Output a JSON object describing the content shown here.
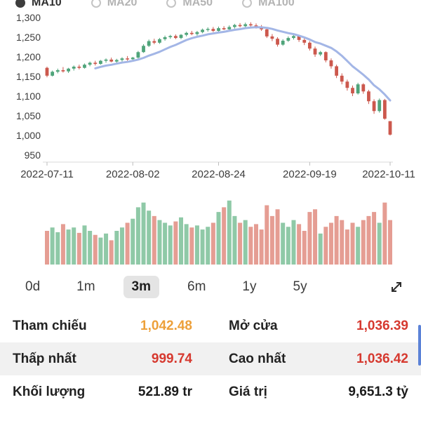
{
  "ma_options": [
    {
      "label": "MA10",
      "selected": true
    },
    {
      "label": "MA20",
      "selected": false
    },
    {
      "label": "MA50",
      "selected": false
    },
    {
      "label": "MA100",
      "selected": false
    }
  ],
  "range": {
    "options": [
      "0d",
      "1m",
      "3m",
      "6m",
      "1y",
      "5y"
    ],
    "selected": "3m"
  },
  "colors": {
    "candle_up": "#4fa47a",
    "candle_down": "#cc584d",
    "volume_up": "#8fc9a7",
    "volume_down": "#e59d93",
    "ma_line": "#a3b6e6",
    "axis_text": "#3c3c3c",
    "axis_line": "#d9d9d9",
    "value_red": "#d6392f",
    "value_amber": "#eda03a",
    "value_dark": "#1c1c1c"
  },
  "chart_data": [
    {
      "type": "candlestick",
      "name": "price",
      "title": "",
      "ylim": [
        950,
        1300
      ],
      "grid": false,
      "y_ticks": [
        {
          "label": "1,300",
          "value": 1300
        },
        {
          "label": "1,250",
          "value": 1250
        },
        {
          "label": "1,200",
          "value": 1200
        },
        {
          "label": "1,150",
          "value": 1150
        },
        {
          "label": "1,100",
          "value": 1100
        },
        {
          "label": "1,050",
          "value": 1050
        },
        {
          "label": "1,000",
          "value": 1000
        },
        {
          "label": "950",
          "value": 950
        }
      ],
      "x_ticks": [
        {
          "label": "2022-07-11",
          "index": 0
        },
        {
          "label": "2022-08-02",
          "index": 16
        },
        {
          "label": "2022-08-24",
          "index": 32
        },
        {
          "label": "2022-09-19",
          "index": 49
        },
        {
          "label": "2022-10-11",
          "index": 64
        }
      ],
      "overlay": {
        "name": "MA10",
        "type": "sma",
        "window": 10
      },
      "candles": [
        [
          1172,
          1175,
          1148,
          1152
        ],
        [
          1152,
          1165,
          1150,
          1162
        ],
        [
          1162,
          1170,
          1158,
          1166
        ],
        [
          1166,
          1174,
          1160,
          1163
        ],
        [
          1163,
          1172,
          1159,
          1170
        ],
        [
          1170,
          1178,
          1165,
          1175
        ],
        [
          1175,
          1180,
          1168,
          1172
        ],
        [
          1172,
          1183,
          1170,
          1180
        ],
        [
          1180,
          1188,
          1176,
          1185
        ],
        [
          1185,
          1190,
          1178,
          1182
        ],
        [
          1182,
          1192,
          1180,
          1190
        ],
        [
          1190,
          1196,
          1185,
          1193
        ],
        [
          1193,
          1198,
          1186,
          1188
        ],
        [
          1188,
          1195,
          1183,
          1192
        ],
        [
          1192,
          1199,
          1188,
          1196
        ],
        [
          1196,
          1202,
          1190,
          1194
        ],
        [
          1194,
          1200,
          1188,
          1198
        ],
        [
          1198,
          1215,
          1195,
          1212
        ],
        [
          1212,
          1232,
          1210,
          1228
        ],
        [
          1228,
          1244,
          1225,
          1240
        ],
        [
          1240,
          1246,
          1232,
          1236
        ],
        [
          1236,
          1248,
          1233,
          1245
        ],
        [
          1245,
          1254,
          1241,
          1250
        ],
        [
          1250,
          1256,
          1246,
          1253
        ],
        [
          1253,
          1257,
          1245,
          1248
        ],
        [
          1248,
          1258,
          1245,
          1256
        ],
        [
          1256,
          1264,
          1252,
          1261
        ],
        [
          1261,
          1266,
          1255,
          1258
        ],
        [
          1258,
          1266,
          1254,
          1263
        ],
        [
          1263,
          1272,
          1260,
          1269
        ],
        [
          1269,
          1275,
          1264,
          1271
        ],
        [
          1271,
          1276,
          1263,
          1266
        ],
        [
          1266,
          1277,
          1262,
          1273
        ],
        [
          1273,
          1278,
          1268,
          1270
        ],
        [
          1270,
          1280,
          1267,
          1276
        ],
        [
          1276,
          1284,
          1272,
          1281
        ],
        [
          1281,
          1286,
          1275,
          1278
        ],
        [
          1278,
          1287,
          1274,
          1283
        ],
        [
          1283,
          1288,
          1277,
          1280
        ],
        [
          1280,
          1285,
          1272,
          1275
        ],
        [
          1275,
          1281,
          1266,
          1270
        ],
        [
          1270,
          1273,
          1248,
          1252
        ],
        [
          1252,
          1258,
          1240,
          1246
        ],
        [
          1246,
          1250,
          1226,
          1231
        ],
        [
          1231,
          1245,
          1228,
          1241
        ],
        [
          1241,
          1252,
          1238,
          1248
        ],
        [
          1248,
          1256,
          1244,
          1253
        ],
        [
          1253,
          1255,
          1238,
          1243
        ],
        [
          1243,
          1248,
          1230,
          1236
        ],
        [
          1236,
          1240,
          1216,
          1221
        ],
        [
          1221,
          1226,
          1200,
          1206
        ],
        [
          1206,
          1215,
          1202,
          1212
        ],
        [
          1212,
          1214,
          1186,
          1191
        ],
        [
          1191,
          1196,
          1170,
          1176
        ],
        [
          1176,
          1180,
          1146,
          1152
        ],
        [
          1152,
          1158,
          1130,
          1137
        ],
        [
          1137,
          1142,
          1114,
          1121
        ],
        [
          1121,
          1127,
          1100,
          1107
        ],
        [
          1107,
          1134,
          1104,
          1130
        ],
        [
          1130,
          1133,
          1106,
          1112
        ],
        [
          1112,
          1116,
          1080,
          1087
        ],
        [
          1087,
          1092,
          1055,
          1062
        ],
        [
          1062,
          1094,
          1058,
          1090
        ],
        [
          1090,
          1093,
          1040,
          1042.48
        ],
        [
          1036.39,
          1036.42,
          999.74,
          1002
        ]
      ]
    },
    {
      "type": "bar",
      "name": "volume",
      "values_rel": [
        0.5,
        0.55,
        0.48,
        0.6,
        0.52,
        0.55,
        0.47,
        0.58,
        0.5,
        0.44,
        0.4,
        0.46,
        0.36,
        0.5,
        0.55,
        0.62,
        0.68,
        0.85,
        0.92,
        0.8,
        0.72,
        0.66,
        0.62,
        0.58,
        0.64,
        0.7,
        0.6,
        0.55,
        0.58,
        0.52,
        0.56,
        0.62,
        0.78,
        0.85,
        0.95,
        0.72,
        0.62,
        0.66,
        0.56,
        0.6,
        0.52,
        0.88,
        0.72,
        0.82,
        0.62,
        0.56,
        0.66,
        0.6,
        0.5,
        0.78,
        0.82,
        0.46,
        0.56,
        0.62,
        0.72,
        0.66,
        0.52,
        0.62,
        0.56,
        0.66,
        0.72,
        0.78,
        0.62,
        0.92,
        0.66
      ]
    }
  ],
  "stats": {
    "rows": [
      {
        "shaded": false,
        "left": {
          "label": "Tham chiếu",
          "value": "1,042.48",
          "value_color": "#eda03a"
        },
        "right": {
          "label": "Mở cửa",
          "value": "1,036.39",
          "value_color": "#d6392f"
        }
      },
      {
        "shaded": true,
        "left": {
          "label": "Thấp nhất",
          "value": "999.74",
          "value_color": "#d6392f"
        },
        "right": {
          "label": "Cao nhất",
          "value": "1,036.42",
          "value_color": "#d6392f"
        }
      },
      {
        "shaded": false,
        "left": {
          "label": "Khối lượng",
          "value": "521.89 tr",
          "value_color": "#1c1c1c"
        },
        "right": {
          "label": "Giá trị",
          "value": "9,651.3 tỷ",
          "value_color": "#1c1c1c"
        }
      }
    ]
  }
}
